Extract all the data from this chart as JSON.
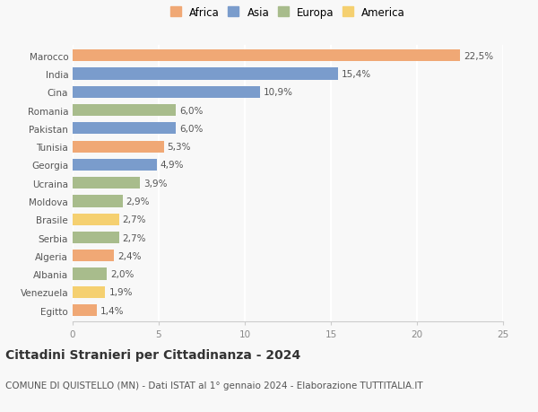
{
  "categories": [
    "Egitto",
    "Venezuela",
    "Albania",
    "Algeria",
    "Serbia",
    "Brasile",
    "Moldova",
    "Ucraina",
    "Georgia",
    "Tunisia",
    "Pakistan",
    "Romania",
    "Cina",
    "India",
    "Marocco"
  ],
  "values": [
    1.4,
    1.9,
    2.0,
    2.4,
    2.7,
    2.7,
    2.9,
    3.9,
    4.9,
    5.3,
    6.0,
    6.0,
    10.9,
    15.4,
    22.5
  ],
  "labels": [
    "1,4%",
    "1,9%",
    "2,0%",
    "2,4%",
    "2,7%",
    "2,7%",
    "2,9%",
    "3,9%",
    "4,9%",
    "5,3%",
    "6,0%",
    "6,0%",
    "10,9%",
    "15,4%",
    "22,5%"
  ],
  "colors": [
    "#f0a875",
    "#f5d070",
    "#a8bc8c",
    "#f0a875",
    "#a8bc8c",
    "#f5d070",
    "#a8bc8c",
    "#a8bc8c",
    "#7a9ccc",
    "#f0a875",
    "#7a9ccc",
    "#a8bc8c",
    "#7a9ccc",
    "#7a9ccc",
    "#f0a875"
  ],
  "legend_labels": [
    "Africa",
    "Asia",
    "Europa",
    "America"
  ],
  "legend_colors": [
    "#f0a875",
    "#7a9ccc",
    "#a8bc8c",
    "#f5d070"
  ],
  "title": "Cittadini Stranieri per Cittadinanza - 2024",
  "subtitle": "COMUNE DI QUISTELLO (MN) - Dati ISTAT al 1° gennaio 2024 - Elaborazione TUTTITALIA.IT",
  "xlim": [
    0,
    25
  ],
  "xticks": [
    0,
    5,
    10,
    15,
    20,
    25
  ],
  "background_color": "#f8f8f8",
  "bar_height": 0.65,
  "label_fontsize": 7.5,
  "tick_fontsize": 7.5,
  "title_fontsize": 10,
  "subtitle_fontsize": 7.5
}
